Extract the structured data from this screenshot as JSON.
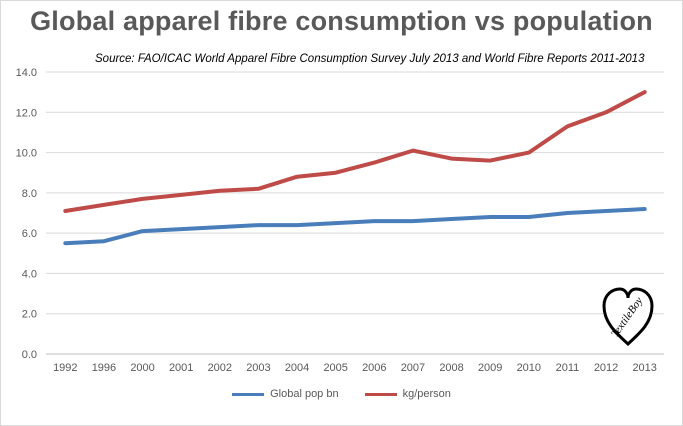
{
  "chart_data": {
    "type": "line",
    "title": "Global apparel fibre consumption vs population",
    "subtitle": "Source:  FAO/ICAC World Apparel Fibre Consumption Survey July 2013 and World Fibre Reports  2011-2013",
    "categories": [
      "1992",
      "1996",
      "2000",
      "2001",
      "2002",
      "2003",
      "2004",
      "2005",
      "2006",
      "2007",
      "2008",
      "2009",
      "2010",
      "2011",
      "2012",
      "2013"
    ],
    "series": [
      {
        "name": "Global pop bn",
        "color": "#4a7ebb",
        "values": [
          5.5,
          5.6,
          6.1,
          6.2,
          6.3,
          6.4,
          6.4,
          6.5,
          6.6,
          6.6,
          6.7,
          6.8,
          6.8,
          7.0,
          7.1,
          7.2
        ]
      },
      {
        "name": "kg/person",
        "color": "#be4b48",
        "values": [
          7.1,
          7.4,
          7.7,
          7.9,
          8.1,
          8.2,
          8.8,
          9.0,
          9.5,
          10.1,
          9.7,
          9.6,
          10.0,
          11.3,
          12.0,
          13.0
        ]
      }
    ],
    "yticks": [
      "0.0",
      "2.0",
      "4.0",
      "6.0",
      "8.0",
      "10.0",
      "12.0",
      "14.0"
    ],
    "ylim": [
      0,
      14
    ],
    "grid": true,
    "legend_position": "bottom"
  },
  "logo": {
    "text": "TextileBoy"
  }
}
